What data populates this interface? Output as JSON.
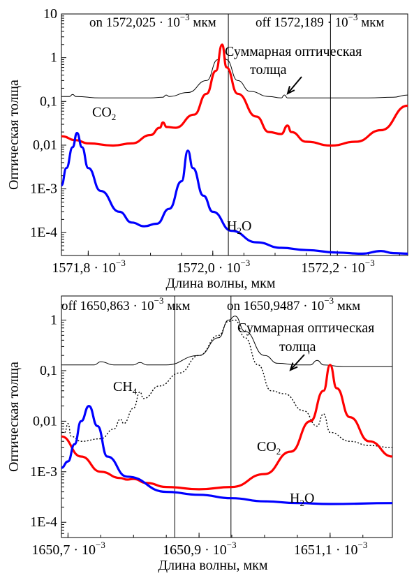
{
  "chart_data": [
    {
      "type": "line",
      "scale": {
        "y": "log"
      },
      "ylim": [
        3e-05,
        10
      ],
      "xlim": [
        1571.757,
        1572.313
      ],
      "xlabel": "Длина волны, мкм",
      "ylabel": "Оптическая толща",
      "yticks": [
        {
          "v": 10,
          "label": "10"
        },
        {
          "v": 1,
          "label": "1"
        },
        {
          "v": 0.1,
          "label": "0,1"
        },
        {
          "v": 0.01,
          "label": "0,01"
        },
        {
          "v": 0.001,
          "label": "1E-3"
        },
        {
          "v": 0.0001,
          "label": "1E-4"
        }
      ],
      "xticks": [
        {
          "v": 1571.8,
          "label": "1571,8 · 10",
          "exp": "−3"
        },
        {
          "v": 1572.0,
          "label": "1572,0 · 10",
          "exp": "−3"
        },
        {
          "v": 1572.2,
          "label": "1572,2 · 10",
          "exp": "−3"
        }
      ],
      "vlines": [
        {
          "x": 1572.025,
          "label": "on 1572,025 · 10",
          "exp": "−3",
          "unit": " мкм"
        },
        {
          "x": 1572.189,
          "label": "off 1572,189 · 10",
          "exp": "−3",
          "unit": " мкм"
        }
      ],
      "series": [
        {
          "name_main": "Суммарная оптическая",
          "name_line2": "толща",
          "color": "#000000",
          "points": [
            [
              1571.757,
              0.13
            ],
            [
              1571.77,
              0.13
            ],
            [
              1571.775,
              0.145
            ],
            [
              1571.78,
              0.13
            ],
            [
              1571.82,
              0.12
            ],
            [
              1571.87,
              0.12
            ],
            [
              1571.9,
              0.12
            ],
            [
              1571.92,
              0.125
            ],
            [
              1571.925,
              0.14
            ],
            [
              1571.93,
              0.13
            ],
            [
              1571.96,
              0.16
            ],
            [
              1571.99,
              0.3
            ],
            [
              1572.008,
              0.9
            ],
            [
              1572.015,
              2.0
            ],
            [
              1572.022,
              0.9
            ],
            [
              1572.04,
              0.3
            ],
            [
              1572.06,
              0.17
            ],
            [
              1572.09,
              0.13
            ],
            [
              1572.11,
              0.12
            ],
            [
              1572.115,
              0.14
            ],
            [
              1572.12,
              0.12
            ],
            [
              1572.15,
              0.12
            ],
            [
              1572.2,
              0.12
            ],
            [
              1572.25,
              0.12
            ],
            [
              1572.29,
              0.125
            ],
            [
              1572.313,
              0.14
            ]
          ]
        },
        {
          "name_main": "CO",
          "name_sub": "2",
          "color": "#ff0000",
          "points": [
            [
              1571.757,
              0.016
            ],
            [
              1571.78,
              0.013
            ],
            [
              1571.8,
              0.011
            ],
            [
              1571.84,
              0.0098
            ],
            [
              1571.87,
              0.011
            ],
            [
              1571.9,
              0.017
            ],
            [
              1571.915,
              0.025
            ],
            [
              1571.92,
              0.033
            ],
            [
              1571.926,
              0.026
            ],
            [
              1571.94,
              0.025
            ],
            [
              1571.97,
              0.05
            ],
            [
              1571.99,
              0.15
            ],
            [
              1572.005,
              0.5
            ],
            [
              1572.015,
              2.0
            ],
            [
              1572.022,
              0.6
            ],
            [
              1572.04,
              0.15
            ],
            [
              1572.07,
              0.045
            ],
            [
              1572.09,
              0.02
            ],
            [
              1572.11,
              0.018
            ],
            [
              1572.12,
              0.028
            ],
            [
              1572.126,
              0.02
            ],
            [
              1572.15,
              0.012
            ],
            [
              1572.19,
              0.0098
            ],
            [
              1572.23,
              0.012
            ],
            [
              1572.27,
              0.022
            ],
            [
              1572.313,
              0.08
            ]
          ]
        },
        {
          "name_main": "H",
          "name_sub": "2",
          "name_tail": "O",
          "color": "#0000ff",
          "points": [
            [
              1571.757,
              0.0012
            ],
            [
              1571.765,
              0.003
            ],
            [
              1571.775,
              0.009
            ],
            [
              1571.782,
              0.019
            ],
            [
              1571.79,
              0.009
            ],
            [
              1571.8,
              0.003
            ],
            [
              1571.82,
              0.0009
            ],
            [
              1571.85,
              0.0003
            ],
            [
              1571.87,
              0.00017
            ],
            [
              1571.89,
              0.00014
            ],
            [
              1571.91,
              0.00016
            ],
            [
              1571.93,
              0.00035
            ],
            [
              1571.95,
              0.0015
            ],
            [
              1571.96,
              0.0075
            ],
            [
              1571.968,
              0.003
            ],
            [
              1571.985,
              0.0007
            ],
            [
              1572.0,
              0.0003
            ],
            [
              1572.03,
              0.00011
            ],
            [
              1572.07,
              6e-05
            ],
            [
              1572.11,
              4.5e-05
            ],
            [
              1572.15,
              4e-05
            ],
            [
              1572.2,
              3.5e-05
            ],
            [
              1572.24,
              3.3e-05
            ],
            [
              1572.27,
              3.8e-05
            ],
            [
              1572.29,
              3.4e-05
            ],
            [
              1572.313,
              3.3e-05
            ]
          ]
        }
      ]
    },
    {
      "type": "line",
      "scale": {
        "y": "log"
      },
      "ylim": [
        5e-05,
        3
      ],
      "xlim": [
        1650.69,
        1651.195
      ],
      "xlabel": "Длина волны, мкм",
      "ylabel": "Оптическая толща",
      "yticks": [
        {
          "v": 1,
          "label": "1"
        },
        {
          "v": 0.1,
          "label": "0,1"
        },
        {
          "v": 0.01,
          "label": "0,01"
        },
        {
          "v": 0.001,
          "label": "1E-3"
        },
        {
          "v": 0.0001,
          "label": "1E-4"
        }
      ],
      "xticks": [
        {
          "v": 1650.7,
          "label": "1650,7 · 10",
          "exp": "−3"
        },
        {
          "v": 1650.9,
          "label": "1650,9 · 10",
          "exp": "−3"
        },
        {
          "v": 1651.1,
          "label": "1651,1 · 10",
          "exp": "−3"
        }
      ],
      "vlines": [
        {
          "x": 1650.863,
          "label": "off 1650,863 · 10",
          "exp": "−3",
          "unit": " мкм"
        },
        {
          "x": 1650.9487,
          "label": "on 1650,9487 · 10",
          "exp": "−3",
          "unit": " мкм"
        }
      ],
      "series": [
        {
          "name_main": "Суммарная оптическая",
          "name_line2": "толща",
          "color": "#000000",
          "points": [
            [
              1650.69,
              0.13
            ],
            [
              1650.74,
              0.13
            ],
            [
              1650.75,
              0.15
            ],
            [
              1650.77,
              0.13
            ],
            [
              1650.8,
              0.13
            ],
            [
              1650.81,
              0.145
            ],
            [
              1650.82,
              0.13
            ],
            [
              1650.85,
              0.13
            ],
            [
              1650.9,
              0.2
            ],
            [
              1650.93,
              0.45
            ],
            [
              1650.945,
              1.0
            ],
            [
              1650.955,
              1.2
            ],
            [
              1650.97,
              0.6
            ],
            [
              1651.0,
              0.2
            ],
            [
              1651.02,
              0.14
            ],
            [
              1651.05,
              0.13
            ],
            [
              1651.07,
              0.13
            ],
            [
              1651.08,
              0.16
            ],
            [
              1651.09,
              0.13
            ],
            [
              1651.12,
              0.12
            ],
            [
              1651.195,
              0.12
            ]
          ]
        },
        {
          "name_main": "CH",
          "name_sub": "4",
          "color": "#000000",
          "dashed": true,
          "points": [
            [
              1650.69,
              0.006
            ],
            [
              1650.695,
              0.006
            ],
            [
              1650.7,
              0.009
            ],
            [
              1650.705,
              0.005
            ],
            [
              1650.72,
              0.004
            ],
            [
              1650.75,
              0.0045
            ],
            [
              1650.77,
              0.007
            ],
            [
              1650.78,
              0.011
            ],
            [
              1650.785,
              0.009
            ],
            [
              1650.8,
              0.018
            ],
            [
              1650.81,
              0.038
            ],
            [
              1650.815,
              0.028
            ],
            [
              1650.84,
              0.05
            ],
            [
              1650.87,
              0.09
            ],
            [
              1650.9,
              0.2
            ],
            [
              1650.93,
              0.5
            ],
            [
              1650.945,
              0.95
            ],
            [
              1650.955,
              1.0
            ],
            [
              1650.97,
              0.45
            ],
            [
              1650.99,
              0.13
            ],
            [
              1651.01,
              0.04
            ],
            [
              1651.03,
              0.035
            ],
            [
              1651.06,
              0.016
            ],
            [
              1651.08,
              0.008
            ],
            [
              1651.09,
              0.014
            ],
            [
              1651.1,
              0.006
            ],
            [
              1651.13,
              0.004
            ],
            [
              1651.16,
              0.0033
            ],
            [
              1651.195,
              0.003
            ]
          ]
        },
        {
          "name_main": "CO",
          "name_sub": "2",
          "color": "#ff0000",
          "points": [
            [
              1650.69,
              0.005
            ],
            [
              1650.72,
              0.002
            ],
            [
              1650.75,
              0.001
            ],
            [
              1650.78,
              0.00075
            ],
            [
              1650.79,
              0.0007
            ],
            [
              1650.8,
              0.00072
            ],
            [
              1650.82,
              0.0006
            ],
            [
              1650.85,
              0.0005
            ],
            [
              1650.9,
              0.00045
            ],
            [
              1650.95,
              0.0005
            ],
            [
              1651.0,
              0.0009
            ],
            [
              1651.04,
              0.0025
            ],
            [
              1651.07,
              0.01
            ],
            [
              1651.09,
              0.04
            ],
            [
              1651.1,
              0.13
            ],
            [
              1651.11,
              0.045
            ],
            [
              1651.13,
              0.012
            ],
            [
              1651.16,
              0.004
            ],
            [
              1651.195,
              0.002
            ]
          ]
        },
        {
          "name_main": "H",
          "name_sub": "2",
          "name_tail": "O",
          "color": "#0000ff",
          "points": [
            [
              1650.69,
              0.0012
            ],
            [
              1650.7,
              0.0016
            ],
            [
              1650.71,
              0.0035
            ],
            [
              1650.72,
              0.01
            ],
            [
              1650.732,
              0.02
            ],
            [
              1650.745,
              0.008
            ],
            [
              1650.76,
              0.002
            ],
            [
              1650.79,
              0.0008
            ],
            [
              1650.85,
              0.0004
            ],
            [
              1650.9,
              0.00035
            ],
            [
              1650.95,
              0.0003
            ],
            [
              1651.0,
              0.00026
            ],
            [
              1651.05,
              0.00024
            ],
            [
              1651.1,
              0.00023
            ],
            [
              1651.195,
              0.00024
            ]
          ]
        }
      ]
    }
  ]
}
